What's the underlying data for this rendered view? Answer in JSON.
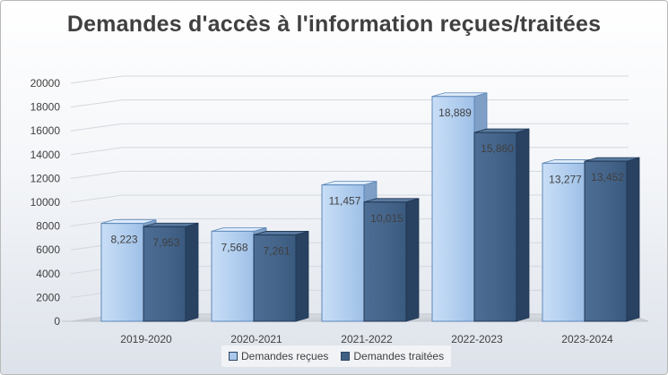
{
  "chart_data": {
    "type": "bar",
    "title": "Demandes d'accès à l'information reçues/traitées",
    "categories": [
      "2019-2020",
      "2020-2021",
      "2021-2022",
      "2022-2023",
      "2023-2024"
    ],
    "series": [
      {
        "name": "Demandes reçues",
        "values": [
          8223,
          7568,
          11457,
          18889,
          13277
        ],
        "labels": [
          "8,223",
          "7,568",
          "11,457",
          "18,889",
          "13,277"
        ],
        "color": "#a9c8ec"
      },
      {
        "name": "Demandes traitées",
        "values": [
          7953,
          7261,
          10015,
          15860,
          13452
        ],
        "labels": [
          "7,953",
          "7,261",
          "10,015",
          "15,860",
          "13,452"
        ],
        "color": "#3f5f85"
      }
    ],
    "ylim": [
      0,
      20000
    ],
    "yticks": [
      "0",
      "2000",
      "4000",
      "6000",
      "8000",
      "10000",
      "12000",
      "14000",
      "16000",
      "18000",
      "20000"
    ],
    "grid": true,
    "legend_position": "bottom",
    "style": "3d-column"
  }
}
